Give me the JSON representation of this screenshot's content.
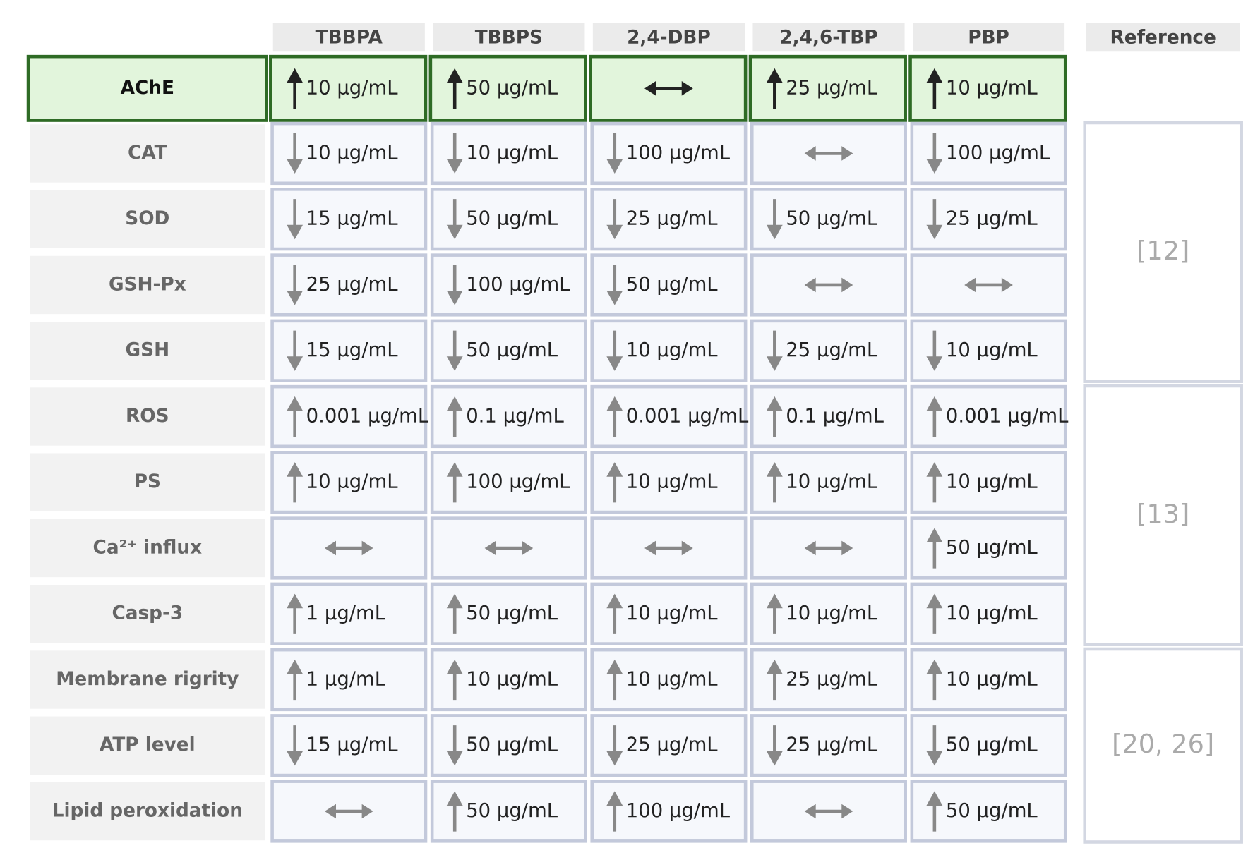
{
  "table": {
    "columns": [
      "TBBPA",
      "TBBPS",
      "2,4-DBP",
      "2,4,6-TBP",
      "PBP"
    ],
    "reference_header": "Reference",
    "rows": [
      {
        "label": "AChE",
        "highlight": true,
        "cells": [
          {
            "arrow": "up",
            "dose": "10 μg/mL"
          },
          {
            "arrow": "up",
            "dose": "50 μg/mL"
          },
          {
            "arrow": "both"
          },
          {
            "arrow": "up",
            "dose": "25 μg/mL"
          },
          {
            "arrow": "up",
            "dose": "10 μg/mL"
          }
        ]
      },
      {
        "label": "CAT",
        "cells": [
          {
            "arrow": "down",
            "dose": "10 μg/mL"
          },
          {
            "arrow": "down",
            "dose": "10 μg/mL"
          },
          {
            "arrow": "down",
            "dose": "100 μg/mL"
          },
          {
            "arrow": "both"
          },
          {
            "arrow": "down",
            "dose": "100 μg/mL"
          }
        ]
      },
      {
        "label": "SOD",
        "cells": [
          {
            "arrow": "down",
            "dose": "15 μg/mL"
          },
          {
            "arrow": "down",
            "dose": "50 μg/mL"
          },
          {
            "arrow": "down",
            "dose": "25 μg/mL"
          },
          {
            "arrow": "down",
            "dose": "50 μg/mL"
          },
          {
            "arrow": "down",
            "dose": "25 μg/mL"
          }
        ]
      },
      {
        "label": "GSH-Px",
        "cells": [
          {
            "arrow": "down",
            "dose": "25 μg/mL"
          },
          {
            "arrow": "down",
            "dose": "100 μg/mL"
          },
          {
            "arrow": "down",
            "dose": "50 μg/mL"
          },
          {
            "arrow": "both"
          },
          {
            "arrow": "both"
          }
        ]
      },
      {
        "label": "GSH",
        "cells": [
          {
            "arrow": "down",
            "dose": "15 μg/mL"
          },
          {
            "arrow": "down",
            "dose": "50 μg/mL"
          },
          {
            "arrow": "down",
            "dose": "10 μg/mL"
          },
          {
            "arrow": "down",
            "dose": "25 μg/mL"
          },
          {
            "arrow": "down",
            "dose": "10 μg/mL"
          }
        ]
      },
      {
        "label": "ROS",
        "cells": [
          {
            "arrow": "up",
            "dose": "0.001 μg/mL"
          },
          {
            "arrow": "up",
            "dose": "0.1 μg/mL"
          },
          {
            "arrow": "up",
            "dose": "0.001 μg/mL"
          },
          {
            "arrow": "up",
            "dose": "0.1 μg/mL"
          },
          {
            "arrow": "up",
            "dose": "0.001 μg/mL"
          }
        ]
      },
      {
        "label": "PS",
        "cells": [
          {
            "arrow": "up",
            "dose": "10 μg/mL"
          },
          {
            "arrow": "up",
            "dose": "100 μg/mL"
          },
          {
            "arrow": "up",
            "dose": "10 μg/mL"
          },
          {
            "arrow": "up",
            "dose": "10 μg/mL"
          },
          {
            "arrow": "up",
            "dose": "10 μg/mL"
          }
        ]
      },
      {
        "label": "Ca²⁺ influx",
        "cells": [
          {
            "arrow": "both"
          },
          {
            "arrow": "both"
          },
          {
            "arrow": "both"
          },
          {
            "arrow": "both"
          },
          {
            "arrow": "up",
            "dose": "50 μg/mL"
          }
        ]
      },
      {
        "label": "Casp-3",
        "cells": [
          {
            "arrow": "up",
            "dose": "1 μg/mL"
          },
          {
            "arrow": "up",
            "dose": "50 μg/mL"
          },
          {
            "arrow": "up",
            "dose": "10 μg/mL"
          },
          {
            "arrow": "up",
            "dose": "10 μg/mL"
          },
          {
            "arrow": "up",
            "dose": "10 μg/mL"
          }
        ]
      },
      {
        "label": "Membrane rigrity",
        "cells": [
          {
            "arrow": "up",
            "dose": "1 μg/mL"
          },
          {
            "arrow": "up",
            "dose": "10 μg/mL"
          },
          {
            "arrow": "up",
            "dose": "10 μg/mL"
          },
          {
            "arrow": "up",
            "dose": "25 μg/mL"
          },
          {
            "arrow": "up",
            "dose": "10 μg/mL"
          }
        ]
      },
      {
        "label": "ATP level",
        "cells": [
          {
            "arrow": "down",
            "dose": "15 μg/mL"
          },
          {
            "arrow": "down",
            "dose": "50 μg/mL"
          },
          {
            "arrow": "down",
            "dose": "25 μg/mL"
          },
          {
            "arrow": "down",
            "dose": "25 μg/mL"
          },
          {
            "arrow": "down",
            "dose": "50 μg/mL"
          }
        ]
      },
      {
        "label": "Lipid peroxidation",
        "cells": [
          {
            "arrow": "both"
          },
          {
            "arrow": "up",
            "dose": "50 μg/mL"
          },
          {
            "arrow": "up",
            "dose": "100 μg/mL"
          },
          {
            "arrow": "both"
          },
          {
            "arrow": "up",
            "dose": "50 μg/mL"
          }
        ]
      }
    ],
    "references": [
      "[12]",
      "[13]",
      "[20, 26]"
    ]
  }
}
